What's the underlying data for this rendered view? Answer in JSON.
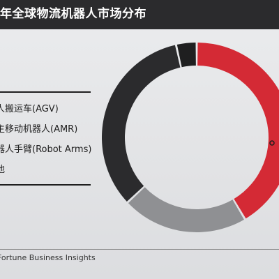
{
  "title": "年全球物流机器人市场分布",
  "source": "Fortune Business Insights",
  "chart_data": {
    "type": "pie",
    "donut": true,
    "categories": [
      "人搬运车(AGV)",
      "主移动机器人(AMR)",
      "器人手臂(Robot Arms)",
      "他"
    ],
    "values": [
      41.5,
      21.5,
      33.5,
      3.5
    ],
    "colors": [
      "#d42a35",
      "#8f9093",
      "#2b2b2d",
      "#1f1f20"
    ],
    "legend_position": "left"
  }
}
